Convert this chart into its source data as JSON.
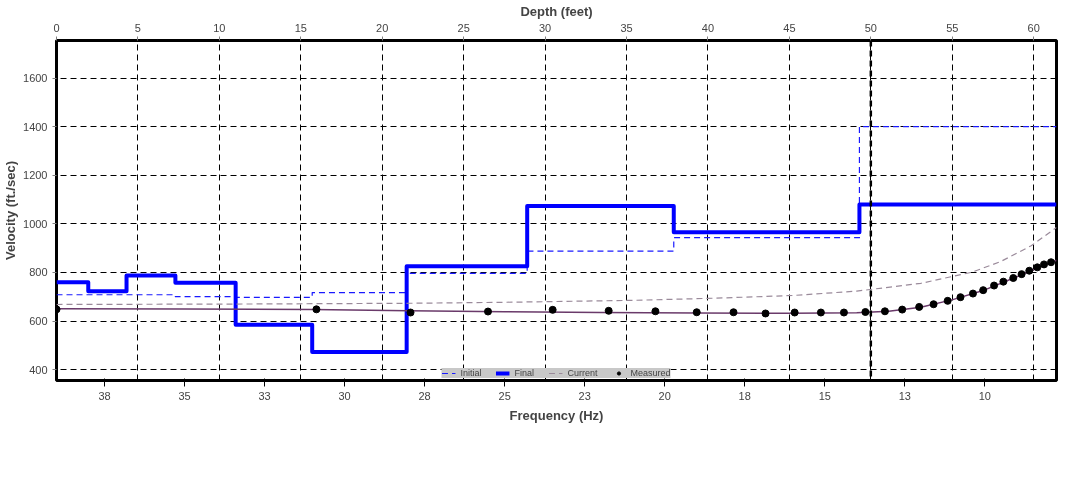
{
  "chart_data": {
    "type": "line",
    "xlabel": "Frequency (Hz)",
    "ylabel": "Velocity (ft./sec)",
    "x2label": "Depth (feet)",
    "xlim": [
      39.0,
      7.76
    ],
    "xticks": [
      {
        "value": 37.5,
        "label": "38"
      },
      35,
      {
        "value": 32.5,
        "label": "33"
      },
      30,
      {
        "value": 27.5,
        "label": "28"
      },
      25,
      {
        "value": 22.5,
        "label": "23"
      },
      20,
      {
        "value": 17.5,
        "label": "18"
      },
      15,
      {
        "value": 12.5,
        "label": "13"
      },
      10
    ],
    "x2lim": [
      0,
      61.4
    ],
    "x2ticks": [
      0,
      5,
      10,
      15,
      20,
      25,
      30,
      35,
      40,
      45,
      50,
      55,
      60
    ],
    "ylim": [
      355,
      1755
    ],
    "yticks": [
      400,
      600,
      800,
      1000,
      1200,
      1400,
      1600
    ],
    "grid": true,
    "legend": "bottom",
    "ref_lines": [
      {
        "axis": "x2",
        "value": 50,
        "label": null,
        "color": "#000000",
        "line_style": "dashed"
      }
    ],
    "series": [
      {
        "name": "Initial",
        "type": "step",
        "axis": "x2",
        "color": "#1a1aff",
        "line_style": "dashed",
        "x": [
          0,
          7.3,
          11.0,
          15.7,
          21.5,
          28.9,
          37.9,
          49.3,
          61.4
        ],
        "values": [
          708,
          700,
          697,
          717,
          796,
          888,
          943,
          1400,
          1400
        ]
      },
      {
        "name": "Final",
        "type": "step",
        "axis": "x2",
        "color": "#0000ff",
        "line_style": "solid",
        "x": [
          0,
          1.95,
          4.3,
          7.3,
          11.0,
          15.7,
          21.5,
          28.9,
          37.9,
          49.3,
          61.4
        ],
        "values": [
          760,
          722,
          787,
          758,
          585,
          472,
          825,
          1074,
          965,
          1080,
          1080
        ]
      },
      {
        "name": "Current",
        "color": "#9a8a9a",
        "line_style": "dashed",
        "x": [
          39.0,
          33,
          28,
          25,
          21,
          18.4,
          16,
          14,
          12,
          10.4,
          9.5,
          8.55,
          7.76
        ],
        "values": [
          668,
          670,
          673,
          677,
          685,
          694,
          705,
          723,
          755,
          801,
          845,
          910,
          985
        ]
      },
      {
        "color": "#6a3a6a",
        "line_style": "solid",
        "x": [
          39.0,
          35,
          31,
          28,
          25,
          22,
          19,
          16,
          14,
          13,
          12,
          11,
          10,
          9,
          8,
          7.76
        ],
        "values": [
          650,
          649,
          647,
          642,
          638,
          635,
          633,
          632,
          634,
          640,
          657,
          688,
          728,
          782,
          838,
          850
        ]
      },
      {
        "name": "Measured",
        "type": "scatter",
        "color": "#000000",
        "marker": "circle",
        "x": [
          39.0,
          30.88,
          27.94,
          25.52,
          23.5,
          21.75,
          20.29,
          19.0,
          17.85,
          16.85,
          15.94,
          15.12,
          14.4,
          13.73,
          13.12,
          12.58,
          12.05,
          11.6,
          11.16,
          10.76,
          10.37,
          10.05,
          9.71,
          9.42,
          9.11,
          8.85,
          8.61,
          8.36,
          8.15,
          7.93
        ],
        "values": [
          648,
          648,
          635,
          639,
          646,
          642,
          640,
          636,
          636,
          631,
          635,
          635,
          635,
          637,
          640,
          647,
          658,
          669,
          683,
          698,
          713,
          727,
          746,
          762,
          777,
          793,
          807,
          821,
          833,
          842
        ]
      }
    ]
  }
}
